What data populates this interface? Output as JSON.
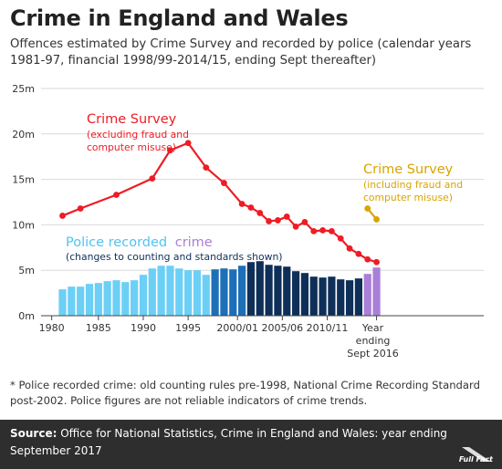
{
  "header": {
    "title": "Crime in England and Wales",
    "subtitle": "Offences estimated by Crime Survey and recorded by police (calendar years 1981-97, financial 1998/99-2014/15, ending Sept thereafter)"
  },
  "footnote": "* Police recorded crime: old counting rules pre-1998, National Crime Recording Standard post-2002. Police figures are not reliable indicators of crime trends.",
  "source": {
    "label": "Source:",
    "text": "Office for National Statistics, Crime in England and Wales: year ending September 2017"
  },
  "logo_text": "Full Fact",
  "chart_data": {
    "type": "bar+line",
    "ylim": [
      0,
      25
    ],
    "y_ticks": [
      "0m",
      "5m",
      "10m",
      "15m",
      "20m",
      "25m"
    ],
    "x_ticks": [
      "1980",
      "1985",
      "1990",
      "1995",
      "2000/01",
      "2005/06",
      "2010/11",
      "Year ending Sept 2016"
    ],
    "grid": true,
    "colors": {
      "cs_excl": "#ee1c25",
      "cs_incl": "#d8a400",
      "police_old": "#6ccff6",
      "police_mid": "#1d6fb8",
      "police_ncrs": "#0e2f57",
      "police_new": "#a97fd8",
      "grid": "#d9d9d9"
    },
    "annotations": {
      "cs_excl_title": "Crime Survey",
      "cs_excl_sub1": "(excluding fraud and",
      "cs_excl_sub2": "computer misuse)",
      "cs_incl_title": "Crime Survey",
      "cs_incl_sub1": "(including fraud and",
      "cs_incl_sub2": "computer misuse)",
      "police_title_a": "Police recorded",
      "police_title_b": "crime",
      "police_sub": "(changes to counting and standards shown)"
    },
    "police_recorded": [
      {
        "year": 1981,
        "value": 2.9,
        "group": "old"
      },
      {
        "year": 1982,
        "value": 3.2,
        "group": "old"
      },
      {
        "year": 1983,
        "value": 3.2,
        "group": "old"
      },
      {
        "year": 1984,
        "value": 3.5,
        "group": "old"
      },
      {
        "year": 1985,
        "value": 3.6,
        "group": "old"
      },
      {
        "year": 1986,
        "value": 3.8,
        "group": "old"
      },
      {
        "year": 1987,
        "value": 3.9,
        "group": "old"
      },
      {
        "year": 1988,
        "value": 3.7,
        "group": "old"
      },
      {
        "year": 1989,
        "value": 3.9,
        "group": "old"
      },
      {
        "year": 1990,
        "value": 4.5,
        "group": "old"
      },
      {
        "year": 1991,
        "value": 5.2,
        "group": "old"
      },
      {
        "year": 1992,
        "value": 5.5,
        "group": "old"
      },
      {
        "year": 1993,
        "value": 5.5,
        "group": "old"
      },
      {
        "year": 1994,
        "value": 5.2,
        "group": "old"
      },
      {
        "year": 1995,
        "value": 5.0,
        "group": "old"
      },
      {
        "year": 1996,
        "value": 5.0,
        "group": "old"
      },
      {
        "year": 1997,
        "value": 4.5,
        "group": "old"
      },
      {
        "year": 1998,
        "value": 5.1,
        "group": "mid"
      },
      {
        "year": 1999,
        "value": 5.2,
        "group": "mid"
      },
      {
        "year": 2000,
        "value": 5.1,
        "group": "mid"
      },
      {
        "year": 2001,
        "value": 5.5,
        "group": "mid"
      },
      {
        "year": 2002,
        "value": 5.9,
        "group": "ncrs"
      },
      {
        "year": 2003,
        "value": 6.0,
        "group": "ncrs"
      },
      {
        "year": 2004,
        "value": 5.6,
        "group": "ncrs"
      },
      {
        "year": 2005,
        "value": 5.5,
        "group": "ncrs"
      },
      {
        "year": 2006,
        "value": 5.4,
        "group": "ncrs"
      },
      {
        "year": 2007,
        "value": 4.9,
        "group": "ncrs"
      },
      {
        "year": 2008,
        "value": 4.7,
        "group": "ncrs"
      },
      {
        "year": 2009,
        "value": 4.3,
        "group": "ncrs"
      },
      {
        "year": 2010,
        "value": 4.2,
        "group": "ncrs"
      },
      {
        "year": 2011,
        "value": 4.3,
        "group": "ncrs"
      },
      {
        "year": 2012,
        "value": 4.0,
        "group": "ncrs"
      },
      {
        "year": 2013,
        "value": 3.9,
        "group": "ncrs"
      },
      {
        "year": 2014,
        "value": 4.1,
        "group": "ncrs"
      },
      {
        "year": 2015,
        "value": 4.6,
        "group": "new"
      },
      {
        "year": 2016,
        "value": 5.3,
        "group": "new"
      }
    ],
    "crime_survey_excl": [
      {
        "year": 1981,
        "value": 11.0
      },
      {
        "year": 1983,
        "value": 11.8
      },
      {
        "year": 1987,
        "value": 13.3
      },
      {
        "year": 1991,
        "value": 15.1
      },
      {
        "year": 1993,
        "value": 18.2
      },
      {
        "year": 1995,
        "value": 19.0
      },
      {
        "year": 1997,
        "value": 16.3
      },
      {
        "year": 1999,
        "value": 14.6
      },
      {
        "year": 2001,
        "value": 12.3
      },
      {
        "year": 2002,
        "value": 11.9
      },
      {
        "year": 2003,
        "value": 11.3
      },
      {
        "year": 2004,
        "value": 10.4
      },
      {
        "year": 2005,
        "value": 10.5
      },
      {
        "year": 2006,
        "value": 10.9
      },
      {
        "year": 2007,
        "value": 9.8
      },
      {
        "year": 2008,
        "value": 10.3
      },
      {
        "year": 2009,
        "value": 9.3
      },
      {
        "year": 2010,
        "value": 9.4
      },
      {
        "year": 2011,
        "value": 9.3
      },
      {
        "year": 2012,
        "value": 8.5
      },
      {
        "year": 2013,
        "value": 7.4
      },
      {
        "year": 2014,
        "value": 6.8
      },
      {
        "year": 2015,
        "value": 6.2
      },
      {
        "year": 2016,
        "value": 5.9
      }
    ],
    "crime_survey_incl": [
      {
        "year": 2015,
        "value": 11.8
      },
      {
        "year": 2016,
        "value": 10.6
      }
    ]
  }
}
